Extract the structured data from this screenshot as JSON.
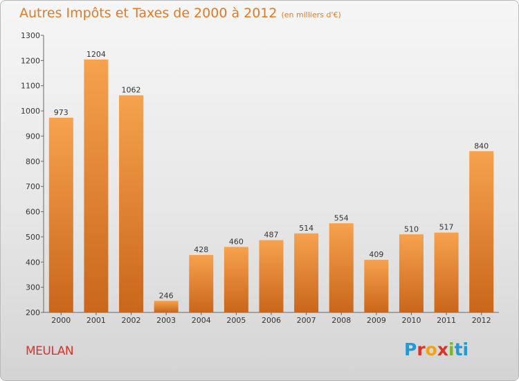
{
  "header": {
    "title": "Autres Impôts et Taxes de 2000 à 2012",
    "subtitle": "(en milliers d'€)"
  },
  "footer": {
    "commune": "MEULAN",
    "brand": "Proxiti"
  },
  "colors": {
    "title": "#e07a28",
    "bar_light": "#f6a24e",
    "bar_dark": "#c9661b",
    "commune": "#d9342b",
    "logo": [
      "#1f9ad6",
      "#d9342b",
      "#f2a218",
      "#d9342b",
      "#7ab828",
      "#1f9ad6",
      "#1f9ad6"
    ]
  },
  "chart_data": {
    "type": "bar",
    "title": "Autres Impôts et Taxes de 2000 à 2012",
    "subtitle": "(en milliers d'€)",
    "categories": [
      "2000",
      "2001",
      "2002",
      "2003",
      "2004",
      "2005",
      "2006",
      "2007",
      "2008",
      "2009",
      "2010",
      "2011",
      "2012"
    ],
    "values": [
      973,
      1204,
      1062,
      246,
      428,
      460,
      487,
      514,
      554,
      409,
      510,
      517,
      840
    ],
    "ylim": [
      200,
      1300
    ],
    "yticks": [
      200,
      300,
      400,
      500,
      600,
      700,
      800,
      900,
      1000,
      1100,
      1200,
      1300
    ],
    "grid": false,
    "legend": "none"
  }
}
